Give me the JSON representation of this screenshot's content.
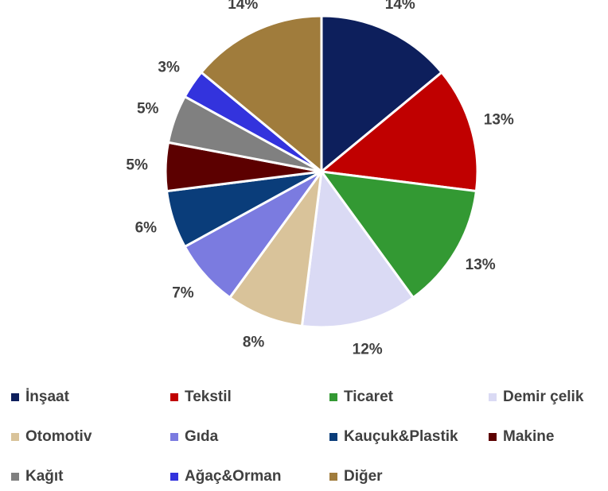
{
  "chart_data": {
    "type": "pie",
    "categories": [
      "İnşaat",
      "Tekstil",
      "Ticaret",
      "Demir çelik",
      "Otomotiv",
      "Gıda",
      "Kauçuk&Plastik",
      "Makine",
      "Kağıt",
      "Ağaç&Orman",
      "Diğer"
    ],
    "values": [
      14,
      13,
      13,
      12,
      8,
      7,
      6,
      5,
      5,
      3,
      14
    ],
    "value_labels": [
      "14%",
      "13%",
      "13%",
      "12%",
      "8%",
      "7%",
      "6%",
      "5%",
      "5%",
      "3%",
      "14%"
    ],
    "colors": [
      "#0d1f5c",
      "#c00000",
      "#339933",
      "#dadaf4",
      "#d9c39a",
      "#7b7be0",
      "#0a3d7a",
      "#5c0000",
      "#808080",
      "#3333dd",
      "#a07c3c"
    ],
    "legend": "bottom"
  }
}
